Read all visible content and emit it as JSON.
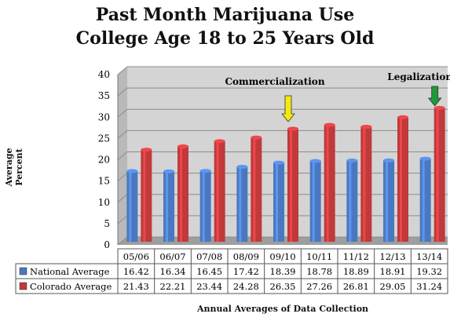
{
  "chart_data": {
    "type": "bar",
    "title": "Past Month Marijuana Use",
    "subtitle": "College Age 18 to 25 Years Old",
    "ylabel": "Average Percent",
    "xlabel": "Annual Averages of Data Collection",
    "ylim": [
      0,
      40
    ],
    "yticks": [
      "0",
      "5",
      "10",
      "15",
      "20",
      "25",
      "30",
      "35",
      "40"
    ],
    "grid": true,
    "legend": "table-bottom",
    "categories": [
      "05/06",
      "06/07",
      "07/08",
      "08/09",
      "09/10",
      "10/11",
      "11/12",
      "12/13",
      "13/14"
    ],
    "series": [
      {
        "name": "National Average",
        "color": "#4a78c0",
        "values": [
          16.42,
          16.34,
          16.45,
          17.42,
          18.39,
          18.78,
          18.89,
          18.91,
          19.32
        ]
      },
      {
        "name": "Colorado Average",
        "color": "#c0393b",
        "values": [
          21.43,
          22.21,
          23.44,
          24.28,
          26.35,
          27.26,
          26.81,
          29.05,
          31.24
        ]
      }
    ],
    "annotations": [
      {
        "text": "Commercialization",
        "category": "09/10",
        "arrow_color": "#f2ea0f"
      },
      {
        "text": "Legalization",
        "category": "13/14",
        "arrow_color": "#1f9a3a"
      }
    ]
  }
}
